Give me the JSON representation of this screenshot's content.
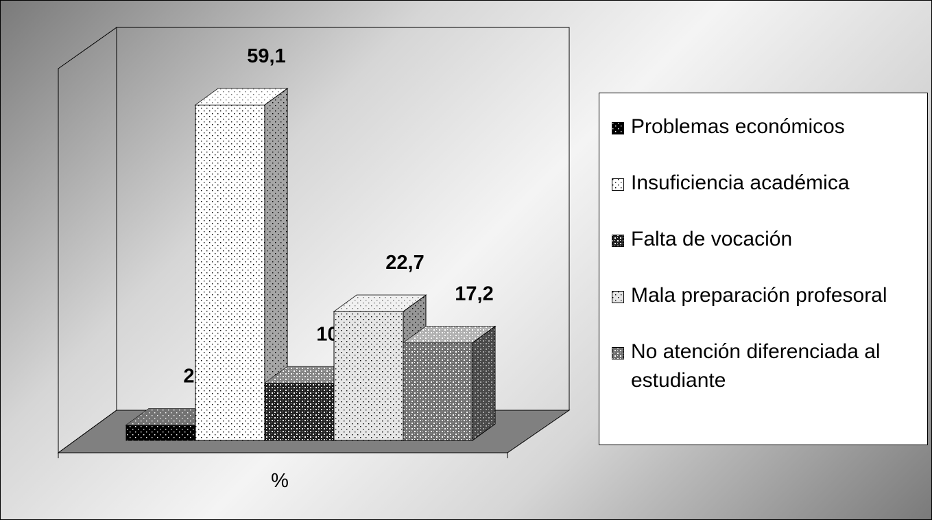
{
  "chart_data": {
    "type": "bar3d",
    "categories": [
      "%"
    ],
    "series": [
      {
        "name": "Problemas económicos",
        "color": "#000000",
        "pattern": "dots",
        "values": [
          2.7
        ],
        "value_labels": [
          "2,7"
        ]
      },
      {
        "name": "Insuficiencia académica",
        "color": "#ffffff",
        "pattern": "dots",
        "values": [
          59.1
        ],
        "value_labels": [
          "59,1"
        ]
      },
      {
        "name": "Falta de vocación",
        "color": "#222222",
        "pattern": "checker",
        "values": [
          10.1
        ],
        "value_labels": [
          "10,1"
        ]
      },
      {
        "name": "Mala preparación profesoral",
        "color": "#e6e6e6",
        "pattern": "dots",
        "values": [
          22.7
        ],
        "value_labels": [
          "22,7"
        ]
      },
      {
        "name": "No atención diferenciada al estudiante",
        "color": "#707070",
        "pattern": "checker",
        "values": [
          17.2
        ],
        "value_labels": [
          "17,2"
        ]
      }
    ],
    "legend": "right"
  }
}
